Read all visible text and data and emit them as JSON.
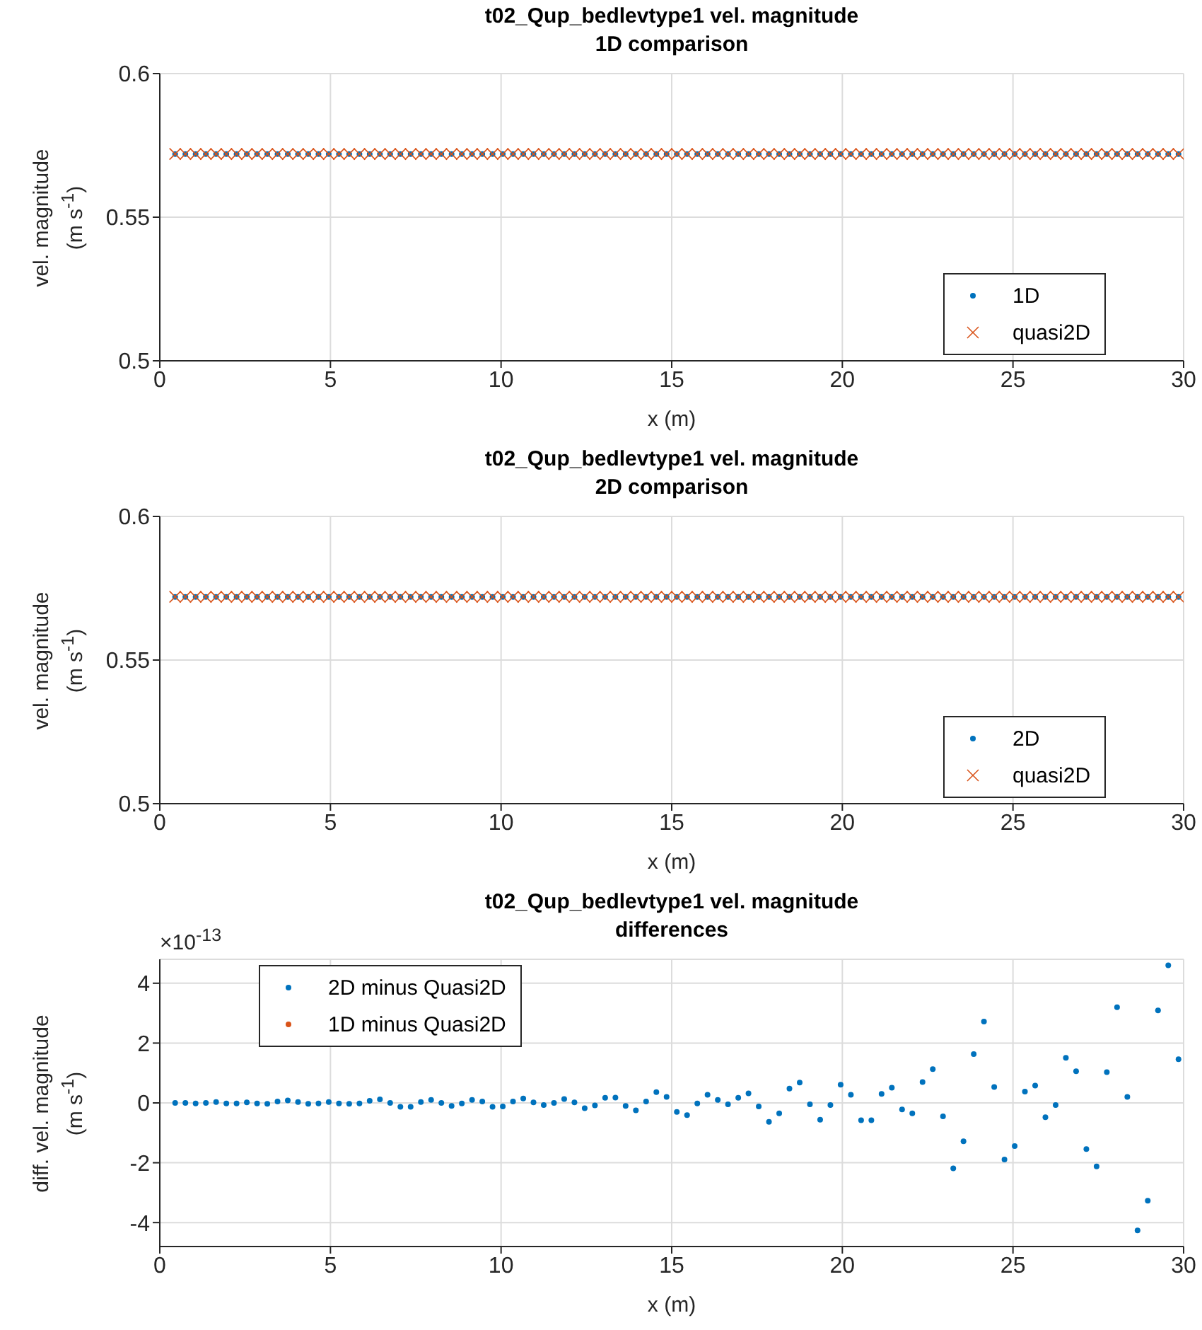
{
  "chart_data": [
    {
      "type": "scatter",
      "title": "t02_Qup_bedlevtype1 vel. magnitude",
      "subtitle": "1D comparison",
      "xlabel": "x (m)",
      "ylabel": "vel. magnitude (m s$^{-1}$)",
      "xlim": [
        0,
        30
      ],
      "xticks": [
        0,
        5,
        10,
        15,
        20,
        25,
        30
      ],
      "ylim": [
        0.5,
        0.6
      ],
      "yticks": [
        0.5,
        0.55,
        0.6
      ],
      "grid": true,
      "legend": "bottom right",
      "x": [
        0.45,
        0.75,
        1.05,
        1.35,
        1.65,
        1.95,
        2.25,
        2.55,
        2.85,
        3.15,
        3.45,
        3.75,
        4.05,
        4.35,
        4.65,
        4.95,
        5.25,
        5.55,
        5.85,
        6.15,
        6.45,
        6.75,
        7.05,
        7.35,
        7.65,
        7.95,
        8.25,
        8.55,
        8.85,
        9.15,
        9.45,
        9.75,
        10.05,
        10.35,
        10.65,
        10.95,
        11.25,
        11.55,
        11.85,
        12.15,
        12.45,
        12.75,
        13.05,
        13.35,
        13.65,
        13.95,
        14.25,
        14.55,
        14.85,
        15.15,
        15.45,
        15.75,
        16.05,
        16.35,
        16.65,
        16.95,
        17.25,
        17.55,
        17.85,
        18.15,
        18.45,
        18.75,
        19.05,
        19.35,
        19.65,
        19.95,
        20.25,
        20.55,
        20.85,
        21.15,
        21.45,
        21.75,
        22.05,
        22.35,
        22.65,
        22.95,
        23.25,
        23.55,
        23.85,
        24.15,
        24.45,
        24.75,
        25.05,
        25.35,
        25.65,
        25.95,
        26.25,
        26.55,
        26.85,
        27.15,
        27.45,
        27.75,
        28.05,
        28.35,
        28.65,
        28.95,
        29.25,
        29.55,
        29.85
      ],
      "series": [
        {
          "name": "1D",
          "color": "#0072bd",
          "marker": "circle",
          "values": [
            0.572,
            0.572,
            0.572,
            0.572,
            0.572,
            0.572,
            0.572,
            0.572,
            0.572,
            0.572,
            0.572,
            0.572,
            0.572,
            0.572,
            0.572,
            0.572,
            0.572,
            0.572,
            0.572,
            0.572,
            0.572,
            0.572,
            0.572,
            0.572,
            0.572,
            0.572,
            0.572,
            0.572,
            0.572,
            0.572,
            0.572,
            0.572,
            0.572,
            0.572,
            0.572,
            0.572,
            0.572,
            0.572,
            0.572,
            0.572,
            0.572,
            0.572,
            0.572,
            0.572,
            0.572,
            0.572,
            0.572,
            0.572,
            0.572,
            0.572,
            0.572,
            0.572,
            0.572,
            0.572,
            0.572,
            0.572,
            0.572,
            0.572,
            0.572,
            0.572,
            0.572,
            0.572,
            0.572,
            0.572,
            0.572,
            0.572,
            0.572,
            0.572,
            0.572,
            0.572,
            0.572,
            0.572,
            0.572,
            0.572,
            0.572,
            0.572,
            0.572,
            0.572,
            0.572,
            0.572,
            0.572,
            0.572,
            0.572,
            0.572,
            0.572,
            0.572,
            0.572,
            0.572,
            0.572,
            0.572,
            0.572,
            0.572,
            0.572,
            0.572,
            0.572,
            0.572,
            0.572,
            0.572,
            0.572
          ]
        },
        {
          "name": "quasi2D",
          "color": "#d95319",
          "marker": "cross",
          "values": [
            0.572,
            0.572,
            0.572,
            0.572,
            0.572,
            0.572,
            0.572,
            0.572,
            0.572,
            0.572,
            0.572,
            0.572,
            0.572,
            0.572,
            0.572,
            0.572,
            0.572,
            0.572,
            0.572,
            0.572,
            0.572,
            0.572,
            0.572,
            0.572,
            0.572,
            0.572,
            0.572,
            0.572,
            0.572,
            0.572,
            0.572,
            0.572,
            0.572,
            0.572,
            0.572,
            0.572,
            0.572,
            0.572,
            0.572,
            0.572,
            0.572,
            0.572,
            0.572,
            0.572,
            0.572,
            0.572,
            0.572,
            0.572,
            0.572,
            0.572,
            0.572,
            0.572,
            0.572,
            0.572,
            0.572,
            0.572,
            0.572,
            0.572,
            0.572,
            0.572,
            0.572,
            0.572,
            0.572,
            0.572,
            0.572,
            0.572,
            0.572,
            0.572,
            0.572,
            0.572,
            0.572,
            0.572,
            0.572,
            0.572,
            0.572,
            0.572,
            0.572,
            0.572,
            0.572,
            0.572,
            0.572,
            0.572,
            0.572,
            0.572,
            0.572,
            0.572,
            0.572,
            0.572,
            0.572,
            0.572,
            0.572,
            0.572,
            0.572,
            0.572,
            0.572,
            0.572,
            0.572,
            0.572,
            0.572
          ]
        }
      ]
    },
    {
      "type": "scatter",
      "title": "t02_Qup_bedlevtype1 vel. magnitude",
      "subtitle": "2D comparison",
      "xlabel": "x (m)",
      "ylabel": "vel. magnitude (m s$^{-1}$)",
      "xlim": [
        0,
        30
      ],
      "xticks": [
        0,
        5,
        10,
        15,
        20,
        25,
        30
      ],
      "ylim": [
        0.5,
        0.6
      ],
      "yticks": [
        0.5,
        0.55,
        0.6
      ],
      "grid": true,
      "legend": "bottom right",
      "x": [
        0.45,
        0.75,
        1.05,
        1.35,
        1.65,
        1.95,
        2.25,
        2.55,
        2.85,
        3.15,
        3.45,
        3.75,
        4.05,
        4.35,
        4.65,
        4.95,
        5.25,
        5.55,
        5.85,
        6.15,
        6.45,
        6.75,
        7.05,
        7.35,
        7.65,
        7.95,
        8.25,
        8.55,
        8.85,
        9.15,
        9.45,
        9.75,
        10.05,
        10.35,
        10.65,
        10.95,
        11.25,
        11.55,
        11.85,
        12.15,
        12.45,
        12.75,
        13.05,
        13.35,
        13.65,
        13.95,
        14.25,
        14.55,
        14.85,
        15.15,
        15.45,
        15.75,
        16.05,
        16.35,
        16.65,
        16.95,
        17.25,
        17.55,
        17.85,
        18.15,
        18.45,
        18.75,
        19.05,
        19.35,
        19.65,
        19.95,
        20.25,
        20.55,
        20.85,
        21.15,
        21.45,
        21.75,
        22.05,
        22.35,
        22.65,
        22.95,
        23.25,
        23.55,
        23.85,
        24.15,
        24.45,
        24.75,
        25.05,
        25.35,
        25.65,
        25.95,
        26.25,
        26.55,
        26.85,
        27.15,
        27.45,
        27.75,
        28.05,
        28.35,
        28.65,
        28.95,
        29.25,
        29.55,
        29.85
      ],
      "series": [
        {
          "name": "2D",
          "color": "#0072bd",
          "marker": "circle",
          "values": [
            0.572,
            0.572,
            0.572,
            0.572,
            0.572,
            0.572,
            0.572,
            0.572,
            0.572,
            0.572,
            0.572,
            0.572,
            0.572,
            0.572,
            0.572,
            0.572,
            0.572,
            0.572,
            0.572,
            0.572,
            0.572,
            0.572,
            0.572,
            0.572,
            0.572,
            0.572,
            0.572,
            0.572,
            0.572,
            0.572,
            0.572,
            0.572,
            0.572,
            0.572,
            0.572,
            0.572,
            0.572,
            0.572,
            0.572,
            0.572,
            0.572,
            0.572,
            0.572,
            0.572,
            0.572,
            0.572,
            0.572,
            0.572,
            0.572,
            0.572,
            0.572,
            0.572,
            0.572,
            0.572,
            0.572,
            0.572,
            0.572,
            0.572,
            0.572,
            0.572,
            0.572,
            0.572,
            0.572,
            0.572,
            0.572,
            0.572,
            0.572,
            0.572,
            0.572,
            0.572,
            0.572,
            0.572,
            0.572,
            0.572,
            0.572,
            0.572,
            0.572,
            0.572,
            0.572,
            0.572,
            0.572,
            0.572,
            0.572,
            0.572,
            0.572,
            0.572,
            0.572,
            0.572,
            0.572,
            0.572,
            0.572,
            0.572,
            0.572,
            0.572,
            0.572,
            0.572,
            0.572,
            0.572,
            0.572
          ]
        },
        {
          "name": "quasi2D",
          "color": "#d95319",
          "marker": "cross",
          "values": [
            0.572,
            0.572,
            0.572,
            0.572,
            0.572,
            0.572,
            0.572,
            0.572,
            0.572,
            0.572,
            0.572,
            0.572,
            0.572,
            0.572,
            0.572,
            0.572,
            0.572,
            0.572,
            0.572,
            0.572,
            0.572,
            0.572,
            0.572,
            0.572,
            0.572,
            0.572,
            0.572,
            0.572,
            0.572,
            0.572,
            0.572,
            0.572,
            0.572,
            0.572,
            0.572,
            0.572,
            0.572,
            0.572,
            0.572,
            0.572,
            0.572,
            0.572,
            0.572,
            0.572,
            0.572,
            0.572,
            0.572,
            0.572,
            0.572,
            0.572,
            0.572,
            0.572,
            0.572,
            0.572,
            0.572,
            0.572,
            0.572,
            0.572,
            0.572,
            0.572,
            0.572,
            0.572,
            0.572,
            0.572,
            0.572,
            0.572,
            0.572,
            0.572,
            0.572,
            0.572,
            0.572,
            0.572,
            0.572,
            0.572,
            0.572,
            0.572,
            0.572,
            0.572,
            0.572,
            0.572,
            0.572,
            0.572,
            0.572,
            0.572,
            0.572,
            0.572,
            0.572,
            0.572,
            0.572,
            0.572,
            0.572,
            0.572,
            0.572,
            0.572,
            0.572,
            0.572,
            0.572,
            0.572,
            0.572
          ]
        }
      ]
    },
    {
      "type": "scatter",
      "title": "t02_Qup_bedlevtype1 vel. magnitude",
      "subtitle": "differences",
      "xlabel": "x (m)",
      "ylabel": "diff. vel. magnitude (m s$^{-1}$)",
      "annotations": [
        "×10$^{-13}$"
      ],
      "xlim": [
        0,
        30
      ],
      "xticks": [
        0,
        5,
        10,
        15,
        20,
        25,
        30
      ],
      "ylim": [
        -4.8,
        4.8
      ],
      "yticks": [
        -4,
        -2,
        0,
        2,
        4
      ],
      "grid": true,
      "legend": "top left",
      "x": [
        0.45,
        0.75,
        1.05,
        1.35,
        1.65,
        1.95,
        2.25,
        2.55,
        2.85,
        3.15,
        3.45,
        3.75,
        4.05,
        4.35,
        4.65,
        4.95,
        5.25,
        5.55,
        5.85,
        6.15,
        6.45,
        6.75,
        7.05,
        7.35,
        7.65,
        7.95,
        8.25,
        8.55,
        8.85,
        9.15,
        9.45,
        9.75,
        10.05,
        10.35,
        10.65,
        10.95,
        11.25,
        11.55,
        11.85,
        12.15,
        12.45,
        12.75,
        13.05,
        13.35,
        13.65,
        13.95,
        14.25,
        14.55,
        14.85,
        15.15,
        15.45,
        15.75,
        16.05,
        16.35,
        16.65,
        16.95,
        17.25,
        17.55,
        17.85,
        18.15,
        18.45,
        18.75,
        19.05,
        19.35,
        19.65,
        19.95,
        20.25,
        20.55,
        20.85,
        21.15,
        21.45,
        21.75,
        22.05,
        22.35,
        22.65,
        22.95,
        23.25,
        23.55,
        23.85,
        24.15,
        24.45,
        24.75,
        25.05,
        25.35,
        25.65,
        25.95,
        26.25,
        26.55,
        26.85,
        27.15,
        27.45,
        27.75,
        28.05,
        28.35,
        28.65,
        28.95,
        29.25,
        29.55,
        29.85
      ],
      "series": [
        {
          "name": "2D minus Quasi2D",
          "color": "#0072bd",
          "marker": "circle",
          "values": [
            0,
            0,
            -0.02,
            0,
            0.03,
            -0.02,
            -0.02,
            0.02,
            -0.02,
            -0.03,
            0.05,
            0.08,
            0.03,
            -0.03,
            -0.02,
            0.03,
            -0.02,
            -0.03,
            -0.02,
            0.07,
            0.12,
            0,
            -0.13,
            -0.13,
            0.03,
            0.1,
            0,
            -0.1,
            -0.02,
            0.1,
            0.05,
            -0.13,
            -0.12,
            0.05,
            0.15,
            0.02,
            -0.07,
            0,
            0.13,
            0.02,
            -0.18,
            -0.08,
            0.17,
            0.18,
            -0.1,
            -0.25,
            0.05,
            0.36,
            0.2,
            -0.3,
            -0.41,
            -0.02,
            0.27,
            0.1,
            -0.05,
            0.17,
            0.32,
            -0.12,
            -0.63,
            -0.35,
            0.48,
            0.68,
            -0.05,
            -0.56,
            -0.07,
            0.61,
            0.27,
            -0.58,
            -0.58,
            0.3,
            0.51,
            -0.22,
            -0.35,
            0.7,
            1.13,
            -0.45,
            -2.19,
            -1.28,
            1.63,
            2.72,
            0.53,
            -1.89,
            -1.44,
            0.38,
            0.58,
            -0.48,
            -0.07,
            1.51,
            1.06,
            -1.54,
            -2.12,
            1.03,
            3.2,
            0.2,
            -4.26,
            -3.27,
            3.09,
            4.6,
            1.46
          ]
        },
        {
          "name": "1D minus Quasi2D",
          "color": "#d95319",
          "marker": "circle",
          "values": [
            null,
            null,
            null,
            null,
            null,
            null,
            null,
            null,
            null,
            null,
            null,
            null,
            null,
            null,
            null,
            null,
            null,
            null,
            null,
            null,
            null,
            null,
            null,
            null,
            null,
            null,
            null,
            null,
            null,
            null,
            null,
            null,
            null,
            null,
            null,
            null,
            null,
            null,
            null,
            null,
            null,
            null,
            null,
            null,
            null,
            null,
            null,
            null,
            null,
            null,
            null,
            null,
            null,
            null,
            null,
            null,
            null,
            null,
            null,
            null,
            null,
            null,
            null,
            null,
            null,
            null,
            null,
            null,
            null,
            null,
            null,
            null,
            null,
            null,
            null,
            null,
            null,
            null,
            null,
            null,
            null,
            null,
            null,
            null,
            null,
            null,
            null,
            null,
            null,
            null,
            null,
            null,
            null,
            null,
            null,
            null,
            null,
            null,
            null
          ]
        }
      ]
    }
  ]
}
